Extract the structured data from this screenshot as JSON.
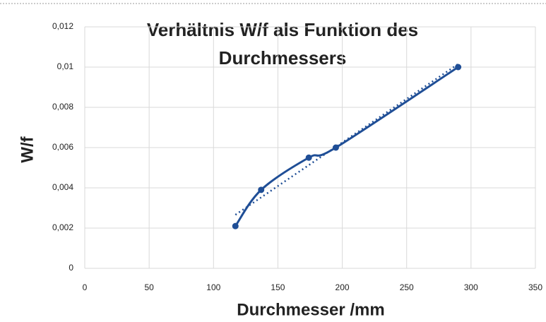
{
  "chart_data": {
    "type": "scatter",
    "title": [
      "Verhältnis W/f  als Funktion des",
      "Durchmessers"
    ],
    "x_label": "Durchmesser /mm",
    "y_label": "W/f",
    "series": [
      {
        "color": "#1f4e96",
        "x": [
          117,
          137,
          174,
          195,
          290
        ],
        "values": [
          0.0021,
          0.0039,
          0.0055,
          0.006,
          0.01
        ]
      }
    ],
    "smooth": true,
    "trendline": "linear",
    "xlim": [
      0,
      350
    ],
    "xticks": [
      0,
      50,
      100,
      150,
      200,
      250,
      300,
      350
    ],
    "ylim": [
      0,
      0.012
    ],
    "yticks": [
      0,
      {
        "value": 0.002,
        "label": "0,002"
      },
      {
        "value": 0.004,
        "label": "0,004"
      },
      {
        "value": 0.006,
        "label": "0,006"
      },
      {
        "value": 0.008,
        "label": "0,008"
      },
      {
        "value": 0.01,
        "label": "0,01"
      },
      {
        "value": 0.012,
        "label": "0,012"
      }
    ],
    "grid": true
  }
}
